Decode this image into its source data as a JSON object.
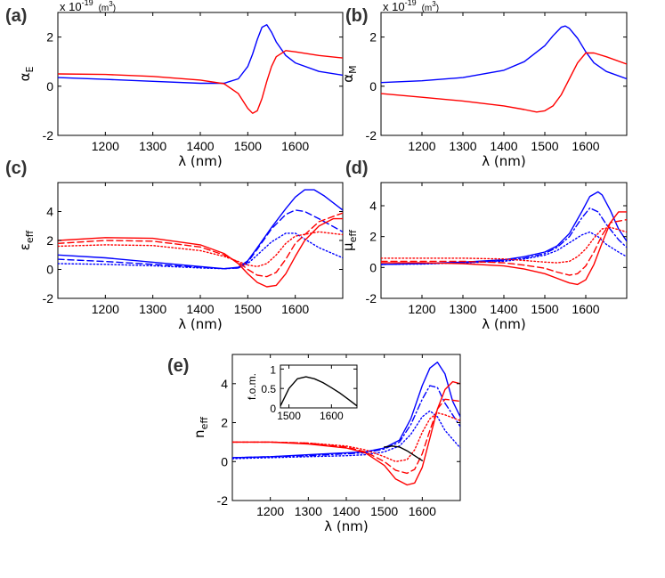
{
  "chart_data": [
    {
      "type": "line",
      "panel_label": "(a)",
      "ylabel": "α",
      "ylabel_sub": "E",
      "xlabel": "λ (nm)",
      "scale_text": "x 10",
      "scale_exp": "-19",
      "scale_unit": "(m",
      "scale_unit_exp": "3",
      "scale_unit_close": ")",
      "xlim": [
        1100,
        1700
      ],
      "ylim": [
        -2,
        3
      ],
      "xticks": [
        "1200",
        "1300",
        "1400",
        "1500",
        "1600"
      ],
      "yticks": [
        "-2",
        "0",
        "2"
      ],
      "series": [
        {
          "color": "#0000ff",
          "dash": "solid",
          "x": [
            1100,
            1200,
            1300,
            1400,
            1450,
            1480,
            1500,
            1510,
            1520,
            1530,
            1540,
            1550,
            1560,
            1580,
            1600,
            1650,
            1700
          ],
          "y": [
            0.35,
            0.28,
            0.2,
            0.12,
            0.12,
            0.3,
            0.8,
            1.3,
            1.9,
            2.4,
            2.5,
            2.2,
            1.8,
            1.25,
            0.95,
            0.6,
            0.45
          ]
        },
        {
          "color": "#ff0000",
          "dash": "solid",
          "x": [
            1100,
            1200,
            1300,
            1400,
            1450,
            1480,
            1500,
            1510,
            1520,
            1530,
            1540,
            1550,
            1560,
            1580,
            1600,
            1650,
            1700
          ],
          "y": [
            0.5,
            0.48,
            0.4,
            0.25,
            0.1,
            -0.3,
            -0.9,
            -1.1,
            -1.0,
            -0.5,
            0.2,
            0.8,
            1.2,
            1.45,
            1.4,
            1.25,
            1.15
          ]
        }
      ]
    },
    {
      "type": "line",
      "panel_label": "(b)",
      "ylabel": "α",
      "ylabel_sub": "M",
      "xlabel": "λ (nm)",
      "scale_text": "x 10",
      "scale_exp": "-19",
      "scale_unit": "(m",
      "scale_unit_exp": "3",
      "scale_unit_close": ")",
      "xlim": [
        1100,
        1700
      ],
      "ylim": [
        -2,
        3
      ],
      "xticks": [
        "1200",
        "1300",
        "1400",
        "1500",
        "1600"
      ],
      "yticks": [
        "-2",
        "0",
        "2"
      ],
      "series": [
        {
          "color": "#0000ff",
          "dash": "solid",
          "x": [
            1100,
            1200,
            1300,
            1400,
            1450,
            1500,
            1520,
            1540,
            1550,
            1560,
            1580,
            1600,
            1620,
            1650,
            1700
          ],
          "y": [
            0.15,
            0.22,
            0.35,
            0.65,
            1.0,
            1.65,
            2.05,
            2.4,
            2.45,
            2.35,
            1.95,
            1.4,
            0.95,
            0.6,
            0.3
          ]
        },
        {
          "color": "#ff0000",
          "dash": "solid",
          "x": [
            1100,
            1200,
            1300,
            1400,
            1450,
            1480,
            1500,
            1520,
            1540,
            1560,
            1580,
            1600,
            1620,
            1650,
            1700
          ],
          "y": [
            -0.3,
            -0.45,
            -0.6,
            -0.8,
            -0.95,
            -1.05,
            -1.0,
            -0.8,
            -0.35,
            0.3,
            0.95,
            1.35,
            1.35,
            1.2,
            0.9
          ]
        }
      ]
    },
    {
      "type": "line",
      "panel_label": "(c)",
      "ylabel": "ε",
      "ylabel_sub": "eff",
      "xlabel": "λ (nm)",
      "xlim": [
        1100,
        1700
      ],
      "ylim": [
        -2,
        6
      ],
      "xticks": [
        "1200",
        "1300",
        "1400",
        "1500",
        "1600"
      ],
      "yticks": [
        "-2",
        "0",
        "2",
        "4"
      ],
      "series": [
        {
          "color": "#0000ff",
          "dash": "solid",
          "x": [
            1100,
            1200,
            1300,
            1400,
            1450,
            1480,
            1500,
            1520,
            1550,
            1580,
            1600,
            1620,
            1640,
            1660,
            1700
          ],
          "y": [
            1.0,
            0.8,
            0.5,
            0.2,
            0.05,
            0.15,
            0.6,
            1.5,
            2.9,
            4.2,
            5.0,
            5.5,
            5.5,
            5.1,
            4.1
          ]
        },
        {
          "color": "#0000ff",
          "dash": "dashed",
          "x": [
            1100,
            1200,
            1300,
            1400,
            1450,
            1480,
            1500,
            1520,
            1550,
            1580,
            1600,
            1620,
            1650,
            1700
          ],
          "y": [
            0.7,
            0.55,
            0.35,
            0.15,
            0.05,
            0.1,
            0.5,
            1.4,
            2.8,
            3.8,
            4.1,
            4.0,
            3.5,
            2.6
          ]
        },
        {
          "color": "#0000ff",
          "dash": "dotted",
          "x": [
            1100,
            1200,
            1300,
            1400,
            1450,
            1480,
            1500,
            1520,
            1550,
            1580,
            1600,
            1620,
            1650,
            1700
          ],
          "y": [
            0.4,
            0.35,
            0.25,
            0.1,
            0.05,
            0.1,
            0.4,
            1.0,
            1.9,
            2.5,
            2.5,
            2.1,
            1.5,
            0.8
          ]
        },
        {
          "color": "#ff0000",
          "dash": "solid",
          "x": [
            1100,
            1200,
            1300,
            1400,
            1450,
            1480,
            1500,
            1520,
            1540,
            1560,
            1580,
            1600,
            1620,
            1650,
            1680,
            1700
          ],
          "y": [
            2.0,
            2.2,
            2.15,
            1.7,
            1.1,
            0.4,
            -0.3,
            -0.9,
            -1.2,
            -1.1,
            -0.3,
            0.9,
            2.0,
            3.0,
            3.5,
            3.5
          ]
        },
        {
          "color": "#ff0000",
          "dash": "dashed",
          "x": [
            1100,
            1200,
            1300,
            1400,
            1450,
            1480,
            1500,
            1520,
            1540,
            1560,
            1580,
            1600,
            1650,
            1700
          ],
          "y": [
            1.8,
            2.0,
            1.95,
            1.55,
            1.0,
            0.5,
            0.0,
            -0.4,
            -0.5,
            -0.2,
            0.7,
            1.8,
            3.3,
            3.9
          ]
        },
        {
          "color": "#ff0000",
          "dash": "dotted",
          "x": [
            1100,
            1200,
            1300,
            1400,
            1450,
            1480,
            1500,
            1520,
            1540,
            1560,
            1580,
            1600,
            1650,
            1700
          ],
          "y": [
            1.6,
            1.7,
            1.65,
            1.3,
            0.9,
            0.55,
            0.3,
            0.2,
            0.4,
            1.0,
            1.8,
            2.3,
            2.6,
            2.4
          ]
        }
      ]
    },
    {
      "type": "line",
      "panel_label": "(d)",
      "ylabel": "μ",
      "ylabel_sub": "eff",
      "xlabel": "λ (nm)",
      "xlim": [
        1100,
        1700
      ],
      "ylim": [
        -2,
        5.5
      ],
      "xticks": [
        "1200",
        "1300",
        "1400",
        "1500",
        "1600"
      ],
      "yticks": [
        "-2",
        "0",
        "2",
        "4"
      ],
      "series": [
        {
          "color": "#0000ff",
          "dash": "solid",
          "x": [
            1100,
            1200,
            1300,
            1400,
            1450,
            1500,
            1530,
            1560,
            1590,
            1610,
            1630,
            1640,
            1660,
            1680,
            1700
          ],
          "y": [
            0.2,
            0.25,
            0.35,
            0.5,
            0.7,
            1.0,
            1.4,
            2.2,
            3.6,
            4.6,
            4.9,
            4.7,
            3.7,
            2.5,
            1.7
          ]
        },
        {
          "color": "#0000ff",
          "dash": "dashdot",
          "x": [
            1100,
            1200,
            1300,
            1400,
            1450,
            1500,
            1530,
            1560,
            1590,
            1610,
            1630,
            1650,
            1680,
            1700
          ],
          "y": [
            0.2,
            0.25,
            0.3,
            0.45,
            0.6,
            0.9,
            1.3,
            2.0,
            3.2,
            3.85,
            3.6,
            2.8,
            1.8,
            1.3
          ]
        },
        {
          "color": "#0000ff",
          "dash": "dotted",
          "x": [
            1100,
            1200,
            1300,
            1400,
            1450,
            1500,
            1530,
            1560,
            1590,
            1610,
            1630,
            1650,
            1680,
            1700
          ],
          "y": [
            0.2,
            0.22,
            0.3,
            0.4,
            0.55,
            0.8,
            1.1,
            1.6,
            2.1,
            2.3,
            2.0,
            1.5,
            1.0,
            0.7
          ]
        },
        {
          "color": "#ff0000",
          "dash": "solid",
          "x": [
            1100,
            1200,
            1300,
            1400,
            1450,
            1500,
            1530,
            1560,
            1580,
            1600,
            1620,
            1640,
            1660,
            1680,
            1700
          ],
          "y": [
            0.3,
            0.3,
            0.25,
            0.1,
            -0.1,
            -0.4,
            -0.7,
            -1.0,
            -1.1,
            -0.8,
            0.2,
            1.6,
            2.9,
            3.6,
            3.6
          ]
        },
        {
          "color": "#ff0000",
          "dash": "dashed",
          "x": [
            1100,
            1200,
            1300,
            1400,
            1450,
            1500,
            1530,
            1560,
            1580,
            1600,
            1620,
            1640,
            1660,
            1700
          ],
          "y": [
            0.4,
            0.4,
            0.4,
            0.3,
            0.15,
            -0.05,
            -0.3,
            -0.5,
            -0.4,
            0.1,
            1.0,
            2.1,
            2.9,
            3.1
          ]
        },
        {
          "color": "#ff0000",
          "dash": "dotted",
          "x": [
            1100,
            1200,
            1300,
            1400,
            1450,
            1500,
            1530,
            1560,
            1580,
            1600,
            1620,
            1640,
            1660,
            1700
          ],
          "y": [
            0.6,
            0.6,
            0.6,
            0.55,
            0.45,
            0.35,
            0.3,
            0.4,
            0.7,
            1.2,
            1.9,
            2.5,
            2.6,
            2.3
          ]
        }
      ]
    },
    {
      "type": "line",
      "panel_label": "(e)",
      "ylabel": "n",
      "ylabel_sub": "eff",
      "xlabel": "λ (nm)",
      "xlim": [
        1100,
        1700
      ],
      "ylim": [
        -2,
        5.5
      ],
      "xticks": [
        "1200",
        "1300",
        "1400",
        "1500",
        "1600"
      ],
      "yticks": [
        "-2",
        "0",
        "2",
        "4"
      ],
      "series": [
        {
          "color": "#0000ff",
          "dash": "solid",
          "x": [
            1100,
            1200,
            1300,
            1400,
            1450,
            1500,
            1540,
            1570,
            1600,
            1620,
            1640,
            1660,
            1680,
            1700
          ],
          "y": [
            0.2,
            0.25,
            0.35,
            0.45,
            0.5,
            0.7,
            1.1,
            2.2,
            3.9,
            4.8,
            5.1,
            4.5,
            3.1,
            2.3
          ]
        },
        {
          "color": "#0000ff",
          "dash": "dashdot",
          "x": [
            1100,
            1200,
            1300,
            1400,
            1450,
            1500,
            1540,
            1570,
            1600,
            1620,
            1640,
            1660,
            1700
          ],
          "y": [
            0.2,
            0.25,
            0.3,
            0.4,
            0.45,
            0.65,
            1.0,
            1.9,
            3.2,
            3.9,
            3.8,
            3.0,
            1.8
          ]
        },
        {
          "color": "#0000ff",
          "dash": "dotted",
          "x": [
            1100,
            1200,
            1300,
            1400,
            1450,
            1500,
            1540,
            1570,
            1600,
            1620,
            1640,
            1660,
            1700
          ],
          "y": [
            0.15,
            0.2,
            0.25,
            0.3,
            0.35,
            0.5,
            0.8,
            1.4,
            2.3,
            2.6,
            2.3,
            1.6,
            0.7
          ]
        },
        {
          "color": "#ff0000",
          "dash": "solid",
          "x": [
            1100,
            1200,
            1300,
            1400,
            1450,
            1500,
            1530,
            1560,
            1580,
            1600,
            1620,
            1640,
            1660,
            1680,
            1700
          ],
          "y": [
            1.0,
            1.0,
            0.9,
            0.7,
            0.45,
            -0.2,
            -0.9,
            -1.2,
            -1.1,
            -0.3,
            1.2,
            2.7,
            3.7,
            4.1,
            4.0
          ]
        },
        {
          "color": "#ff0000",
          "dash": "dashed",
          "x": [
            1100,
            1200,
            1300,
            1400,
            1450,
            1500,
            1530,
            1560,
            1580,
            1600,
            1620,
            1640,
            1660,
            1700
          ],
          "y": [
            1.0,
            1.0,
            0.95,
            0.75,
            0.5,
            0.0,
            -0.45,
            -0.6,
            -0.4,
            0.4,
            1.6,
            2.7,
            3.2,
            3.1
          ]
        },
        {
          "color": "#ff0000",
          "dash": "dotted",
          "x": [
            1100,
            1200,
            1300,
            1400,
            1450,
            1500,
            1530,
            1560,
            1580,
            1600,
            1620,
            1640,
            1660,
            1700
          ],
          "y": [
            1.0,
            1.0,
            0.95,
            0.8,
            0.6,
            0.25,
            0.0,
            0.1,
            0.6,
            1.5,
            2.2,
            2.5,
            2.4,
            2.1
          ]
        },
        {
          "color": "#000000",
          "dash": "solid",
          "x": [
            1500,
            1520,
            1540,
            1560,
            1580,
            1600
          ],
          "y": [
            0.75,
            0.8,
            0.75,
            0.55,
            0.3,
            0.05
          ]
        }
      ],
      "inset": {
        "ylabel": "f.o.m.",
        "xlim": [
          1480,
          1660
        ],
        "ylim": [
          0,
          1.1
        ],
        "xticks": [
          "1500",
          "1600"
        ],
        "yticks": [
          "0",
          "0.5",
          "1"
        ],
        "series": [
          {
            "color": "#000000",
            "dash": "solid",
            "x": [
              1480,
              1500,
              1520,
              1540,
              1560,
              1580,
              1600,
              1620,
              1640,
              1660
            ],
            "y": [
              0.05,
              0.5,
              0.75,
              0.8,
              0.75,
              0.65,
              0.52,
              0.38,
              0.22,
              0.05
            ]
          }
        ]
      }
    }
  ]
}
